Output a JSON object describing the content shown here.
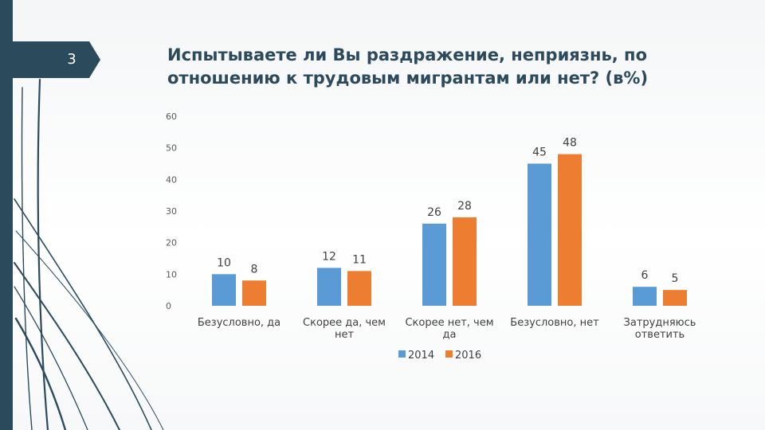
{
  "slide": {
    "number": "3",
    "title": "Испытываете ли Вы раздражение, неприязнь, по отношению к трудовым мигрантам или нет? (в%)"
  },
  "colors": {
    "series_2014": "#5b9bd5",
    "series_2016": "#ed7d31",
    "sidebar": "#2b4b5c",
    "title": "#2c4a5c"
  },
  "chart_data": {
    "type": "bar",
    "title": "Испытываете ли Вы раздражение, неприязнь, по отношению к трудовым мигрантам или нет? (в%)",
    "categories": [
      [
        "Безусловно, да"
      ],
      [
        "Скорее да, чем",
        "нет"
      ],
      [
        "Скорее нет, чем",
        "да"
      ],
      [
        "Безусловно, нет"
      ],
      [
        "Затрудняюсь",
        "ответить"
      ]
    ],
    "series": [
      {
        "name": "2014",
        "values": [
          10,
          12,
          26,
          45,
          6
        ]
      },
      {
        "name": "2016",
        "values": [
          8,
          11,
          28,
          48,
          5
        ]
      }
    ],
    "ylim": [
      0,
      60
    ],
    "yticks": [
      0,
      10,
      20,
      30,
      40,
      50,
      60
    ],
    "xlabel": "",
    "ylabel": "",
    "grid": false,
    "legend": "bottom"
  }
}
